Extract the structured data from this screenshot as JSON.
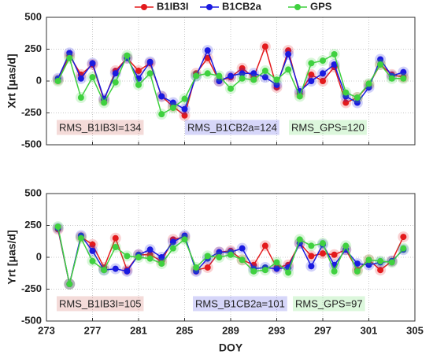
{
  "chart_data": [
    {
      "type": "line",
      "ylabel": "Xrt [μas/d]",
      "xlim": [
        273,
        305
      ],
      "xticks": [
        273,
        277,
        281,
        285,
        289,
        293,
        297,
        301,
        305
      ],
      "ylim": [
        -500,
        500
      ],
      "yticks": [
        -500,
        -250,
        0,
        250,
        500
      ],
      "grid": true,
      "legend": "top",
      "x": [
        274,
        275,
        276,
        277,
        278,
        279,
        280,
        281,
        282,
        283,
        284,
        285,
        286,
        287,
        288,
        289,
        290,
        291,
        292,
        293,
        294,
        295,
        296,
        297,
        298,
        299,
        300,
        301,
        302,
        303,
        304
      ],
      "series": [
        {
          "name": "B1IB3I",
          "color": "#e31a1c",
          "values": [
            10,
            200,
            50,
            130,
            -150,
            80,
            180,
            80,
            140,
            -120,
            -200,
            -270,
            60,
            180,
            0,
            30,
            100,
            30,
            270,
            -50,
            240,
            -100,
            50,
            0,
            110,
            -170,
            -130,
            -30,
            130,
            50,
            30
          ]
        },
        {
          "name": "B1CB2a",
          "color": "#1a1ae0",
          "values": [
            20,
            220,
            20,
            140,
            -140,
            60,
            180,
            20,
            150,
            -120,
            -170,
            -220,
            40,
            240,
            0,
            40,
            60,
            60,
            30,
            -30,
            210,
            -80,
            0,
            60,
            130,
            -120,
            -170,
            -50,
            170,
            40,
            70
          ]
        },
        {
          "name": "GPS",
          "color": "#3fd13f",
          "values": [
            0,
            180,
            -130,
            30,
            -170,
            -10,
            200,
            -30,
            60,
            -260,
            -210,
            -140,
            40,
            60,
            40,
            -60,
            20,
            10,
            80,
            10,
            90,
            -120,
            140,
            160,
            210,
            -90,
            -130,
            -20,
            130,
            20,
            20
          ]
        }
      ],
      "annotations": [
        {
          "text": "RMS_B1IB3I=134",
          "color": "#c0392b"
        },
        {
          "text": "RMS_B1CB2a=124",
          "color": "#1a1ae0"
        },
        {
          "text": "RMS_GPS=120",
          "color": "#3fd13f"
        }
      ]
    },
    {
      "type": "line",
      "ylabel": "Yrt [μas/d]",
      "xlabel": "DOY",
      "xlim": [
        273,
        305
      ],
      "xticks": [
        273,
        277,
        281,
        285,
        289,
        293,
        297,
        301,
        305
      ],
      "ylim": [
        -500,
        500
      ],
      "yticks": [
        -500,
        -250,
        0,
        250,
        500
      ],
      "grid": true,
      "x": [
        274,
        275,
        276,
        277,
        278,
        279,
        280,
        281,
        282,
        283,
        284,
        285,
        286,
        287,
        288,
        289,
        290,
        291,
        292,
        293,
        294,
        295,
        296,
        297,
        298,
        299,
        300,
        301,
        302,
        303,
        304
      ],
      "series": [
        {
          "color": "#e31a1c",
          "values": [
            220,
            -210,
            160,
            100,
            -80,
            150,
            -100,
            20,
            20,
            -30,
            140,
            160,
            -100,
            -80,
            40,
            50,
            -20,
            -60,
            90,
            -80,
            -60,
            110,
            10,
            30,
            20,
            60,
            -100,
            -20,
            -100,
            -30,
            160
          ]
        },
        {
          "color": "#1a1ae0",
          "values": [
            230,
            -210,
            170,
            50,
            -100,
            -90,
            -110,
            20,
            60,
            0,
            120,
            170,
            -110,
            -10,
            40,
            40,
            70,
            -90,
            -80,
            -90,
            -80,
            110,
            -70,
            100,
            -60,
            60,
            -50,
            -60,
            -40,
            -30,
            60
          ]
        },
        {
          "color": "#3fd13f",
          "values": [
            240,
            -210,
            150,
            -30,
            -100,
            80,
            10,
            0,
            -10,
            -50,
            70,
            140,
            -80,
            10,
            0,
            20,
            -20,
            -110,
            -100,
            -40,
            -120,
            140,
            90,
            110,
            -110,
            90,
            -110,
            -20,
            -30,
            -40,
            70
          ]
        }
      ],
      "annotations": [
        {
          "text": "RMS_B1IB3I=105",
          "color": "#c0392b"
        },
        {
          "text": "RMS_B1CB2a=101",
          "color": "#1a1ae0"
        },
        {
          "text": "RMS_GPS=97",
          "color": "#3fd13f"
        }
      ]
    }
  ]
}
